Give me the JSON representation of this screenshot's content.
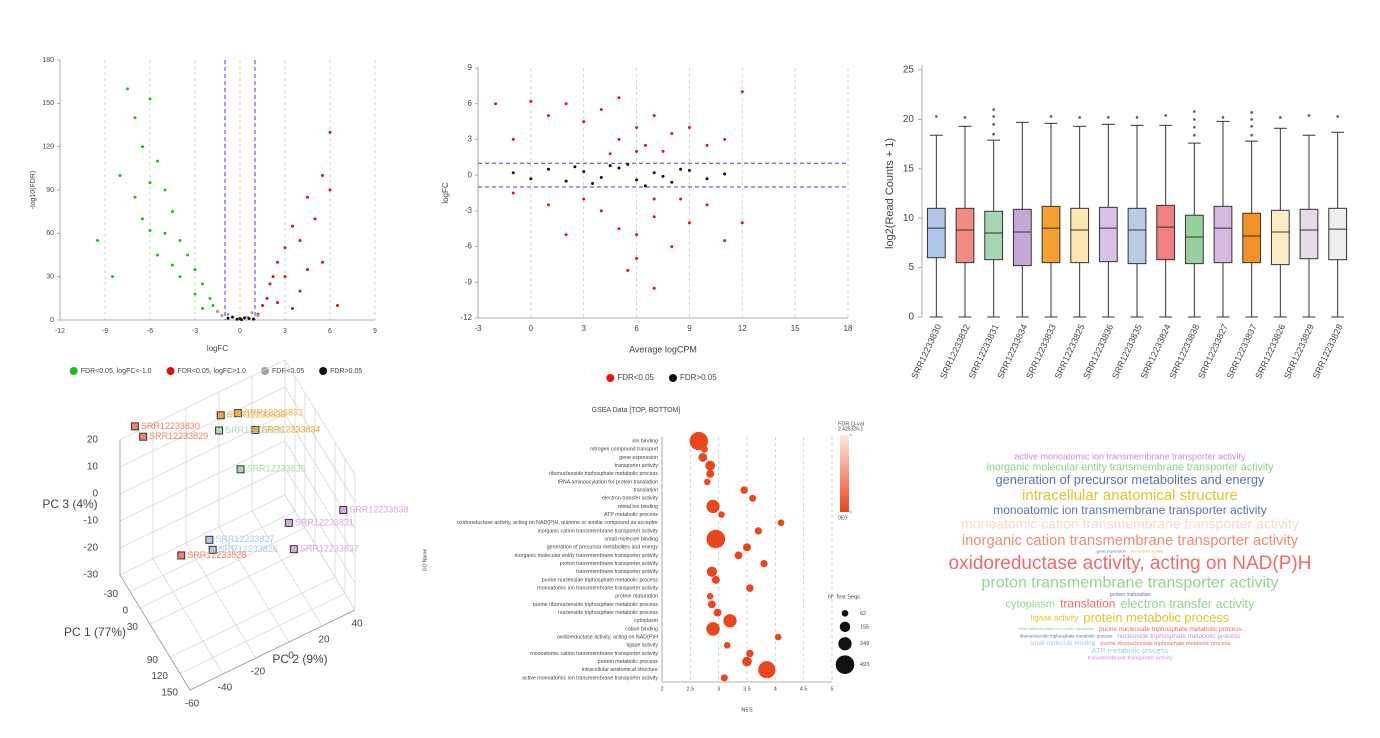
{
  "chart_data": [
    {
      "type": "scatter",
      "xlabel": "logFC",
      "ylabel": "-log10(FDR)",
      "xlim": [
        -12,
        9
      ],
      "xticks": [
        -12,
        -9,
        -6,
        -3,
        0,
        3,
        6,
        9
      ],
      "ylim": [
        0,
        180
      ],
      "yticks": [
        0,
        30,
        60,
        90,
        120,
        150,
        180
      ],
      "grid": "x",
      "legend": "bottom",
      "threshold_lines": {
        "orientation": "vertical",
        "values": [
          -1,
          1
        ],
        "color": "#3a3aff"
      },
      "series": [
        {
          "name": "FDR<0.05, logFC<-1.0",
          "color": "#22bb22",
          "x": [
            -7.5,
            -6,
            -7,
            -6.5,
            -8,
            -5.5,
            -6,
            -7,
            -5,
            -4.5,
            -6.5,
            -5,
            -4,
            -9.5,
            -3.5,
            -5.5,
            -3,
            -4,
            -2.5,
            -3,
            -2,
            -1.8,
            -1.5,
            -2.5,
            -4.5,
            -6,
            -8.5
          ],
          "y": [
            160,
            153,
            140,
            120,
            100,
            110,
            95,
            85,
            90,
            75,
            70,
            60,
            55,
            55,
            45,
            45,
            35,
            30,
            25,
            18,
            15,
            10,
            6,
            8,
            38,
            62,
            30
          ]
        },
        {
          "name": "FDR<0.05, logFC>1.0",
          "color": "#dd1111",
          "x": [
            6,
            5.5,
            6,
            4.5,
            5,
            3.5,
            4,
            3,
            5.5,
            2.5,
            3,
            2,
            4,
            1.8,
            1.5,
            2.5,
            6.5,
            3.5,
            1.2,
            4.5,
            2.2
          ],
          "y": [
            130,
            100,
            90,
            85,
            70,
            65,
            55,
            50,
            40,
            40,
            30,
            25,
            20,
            15,
            10,
            12,
            10,
            8,
            4,
            35,
            30
          ]
        },
        {
          "name": "FDR<0.05",
          "color": "#a0a0a0",
          "x": [
            -1.5,
            -0.8,
            0.8,
            1.2,
            -1.2,
            0.5
          ],
          "y": [
            6,
            4,
            5,
            3,
            3,
            2
          ]
        },
        {
          "name": "FDR>0.05",
          "color": "#111111",
          "x": [
            -0.5,
            0,
            0.3,
            -0.2,
            0.6,
            -0.8,
            0.9,
            0.1
          ],
          "y": [
            2,
            1,
            1.5,
            0.5,
            1,
            1.2,
            0.6,
            0.3
          ]
        }
      ]
    },
    {
      "type": "scatter",
      "xlabel": "Average logCPM",
      "ylabel": "logFC",
      "xlim": [
        -3,
        18
      ],
      "xticks": [
        -3,
        0,
        3,
        6,
        9,
        12,
        15,
        18
      ],
      "ylim": [
        -12,
        9
      ],
      "yticks": [
        -12,
        -9,
        -6,
        -3,
        0,
        3,
        6,
        9
      ],
      "grid": "x",
      "legend": "bottom",
      "threshold_lines": {
        "orientation": "horizontal",
        "values": [
          -1,
          1
        ],
        "color": "#3a3aff"
      },
      "series": [
        {
          "name": "FDR<0.05",
          "color": "#ee1111",
          "x": [
            0,
            1,
            2,
            3,
            4,
            5,
            6,
            7,
            8,
            9,
            10,
            11,
            12,
            -1,
            -2,
            5,
            6.5,
            7.5,
            4,
            5,
            6,
            7,
            8,
            9,
            10,
            11,
            3,
            2,
            1,
            6,
            7,
            5.5,
            8.5,
            6,
            4.5,
            7,
            12,
            -1
          ],
          "y": [
            6.2,
            5,
            6,
            4.5,
            5.5,
            6.5,
            4,
            5,
            3.5,
            4,
            2.5,
            3,
            7,
            3,
            6,
            3,
            2.5,
            2,
            -3,
            -4.5,
            -5,
            -3.5,
            -6,
            -4,
            -2.5,
            -5.5,
            -2,
            -5,
            -2.5,
            -7,
            -9.5,
            -8,
            -2,
            2,
            1.8,
            -2,
            -4,
            -1.5
          ]
        },
        {
          "name": "FDR>0.05",
          "color": "#111111",
          "x": [
            -1,
            0,
            1,
            2,
            3,
            4,
            5,
            6,
            7,
            8,
            9,
            10,
            11,
            5.5,
            6.5,
            3.5,
            4.5,
            7.5,
            2.5,
            8.5
          ],
          "y": [
            0.2,
            -0.3,
            0.5,
            -0.5,
            0.3,
            -0.2,
            0.6,
            -0.4,
            0.2,
            -0.6,
            0.4,
            -0.3,
            0.1,
            0.9,
            -0.9,
            -0.7,
            0.8,
            -0.1,
            0.7,
            0.5
          ]
        }
      ]
    },
    {
      "type": "box",
      "ylabel": "log2(Read Counts + 1)",
      "ylim": [
        0,
        25
      ],
      "yticks": [
        0,
        5,
        10,
        15,
        20,
        25
      ],
      "categories": [
        "SRR12233830",
        "SRR12233832",
        "SRR12233831",
        "SRR12233834",
        "SRR12233833",
        "SRR12233825",
        "SRR12233836",
        "SRR12233835",
        "SRR12233824",
        "SRR12233838",
        "SRR12233827",
        "SRR12233837",
        "SRR12233826",
        "SRR12233829",
        "SRR12233828"
      ],
      "colors": [
        "#aec7e8",
        "#f28b82",
        "#a8d5b2",
        "#c9a6d9",
        "#f5a033",
        "#fde8b5",
        "#d8c0e6",
        "#b8cde8",
        "#f07f7f",
        "#98d0a0",
        "#d7b8e0",
        "#f09228",
        "#fdebc6",
        "#e5dce8",
        "#eeeeee"
      ],
      "boxes": [
        {
          "min": 0,
          "q1": 6,
          "median": 9,
          "q3": 11,
          "max": 18.4,
          "outliers": [
            20.3
          ]
        },
        {
          "min": 0,
          "q1": 5.5,
          "median": 8.8,
          "q3": 11,
          "max": 19.3,
          "outliers": [
            20.2
          ]
        },
        {
          "min": 0,
          "q1": 5.8,
          "median": 8.5,
          "q3": 10.7,
          "max": 17.9,
          "outliers": [
            18.5,
            19.5,
            20.3,
            21
          ]
        },
        {
          "min": 0,
          "q1": 5.2,
          "median": 8.6,
          "q3": 10.9,
          "max": 19.7,
          "outliers": []
        },
        {
          "min": 0,
          "q1": 5.5,
          "median": 9,
          "q3": 11.2,
          "max": 19.6,
          "outliers": [
            20.3
          ]
        },
        {
          "min": 0,
          "q1": 5.5,
          "median": 8.8,
          "q3": 11,
          "max": 19.3,
          "outliers": [
            20.2
          ]
        },
        {
          "min": 0,
          "q1": 5.6,
          "median": 9,
          "q3": 11.1,
          "max": 19.5,
          "outliers": [
            20.2
          ]
        },
        {
          "min": 0,
          "q1": 5.4,
          "median": 8.8,
          "q3": 11,
          "max": 19.4,
          "outliers": [
            20.2
          ]
        },
        {
          "min": 0,
          "q1": 5.8,
          "median": 9.1,
          "q3": 11.3,
          "max": 19.4,
          "outliers": [
            20.4
          ]
        },
        {
          "min": 0,
          "q1": 5.4,
          "median": 8.1,
          "q3": 10.3,
          "max": 17.6,
          "outliers": [
            18.4,
            19.2,
            20,
            20.8
          ]
        },
        {
          "min": 0,
          "q1": 5.5,
          "median": 9,
          "q3": 11.2,
          "max": 19.8,
          "outliers": [
            20.2
          ]
        },
        {
          "min": 0,
          "q1": 5.5,
          "median": 8.2,
          "q3": 10.5,
          "max": 17.8,
          "outliers": [
            18.4,
            19.3,
            20,
            20.7
          ]
        },
        {
          "min": 0,
          "q1": 5.3,
          "median": 8.6,
          "q3": 10.8,
          "max": 19.1,
          "outliers": [
            20.2
          ]
        },
        {
          "min": 0,
          "q1": 5.9,
          "median": 8.8,
          "q3": 10.9,
          "max": 18.4,
          "outliers": [
            20.4
          ]
        },
        {
          "min": 0,
          "q1": 5.8,
          "median": 8.9,
          "q3": 11,
          "max": 18.7,
          "outliers": [
            20.3
          ]
        }
      ]
    },
    {
      "type": "scatter3d",
      "xlabel": "PC 1 (77%)",
      "ylabel": "PC 2 (9%)",
      "zlabel": "PC 3 (4%)",
      "xlim": [
        -60,
        150
      ],
      "xticks": [
        -30,
        0,
        30,
        90,
        120,
        150
      ],
      "ylim": [
        -60,
        40
      ],
      "yticks": [
        -60,
        -40,
        -20,
        0,
        20,
        40
      ],
      "zlim": [
        -30,
        20
      ],
      "zticks": [
        -30,
        -20,
        -10,
        0,
        10,
        20
      ],
      "points": [
        {
          "name": "SRR12233830",
          "color": "#f08070",
          "x": -50,
          "y": -53,
          "z": 25
        },
        {
          "name": "SRR12233829",
          "color": "#f08070",
          "x": -45,
          "y": -49,
          "z": 21
        },
        {
          "name": "SRR12233832",
          "color": "#f5b14a",
          "x": -40,
          "y": 7.5,
          "z": 14
        },
        {
          "name": "SRR12233833",
          "color": "#e8a84a",
          "x": -45,
          "y": -2,
          "z": 15
        },
        {
          "name": "SRR12233834",
          "color": "#f5a030",
          "x": -35,
          "y": 17,
          "z": 6
        },
        {
          "name": "SRR12233836",
          "color": "#a8d8b0",
          "x": -40,
          "y": -4,
          "z": 11
        },
        {
          "name": "SRR12233835",
          "color": "#a8d8b0",
          "x": -20,
          "y": 5,
          "z": -2
        },
        {
          "name": "SRR12233838",
          "color": "#d8a8e0",
          "x": 100,
          "y": 43,
          "z": -4
        },
        {
          "name": "SRR12233831",
          "color": "#d8a8e0",
          "x": 100,
          "y": 10,
          "z": 1
        },
        {
          "name": "SRR12233837",
          "color": "#d8a8e0",
          "x": 110,
          "y": 11,
          "z": -7
        },
        {
          "name": "SRR12233827",
          "color": "#aec8e8",
          "x": 20,
          "y": -22,
          "z": -12
        },
        {
          "name": "SRR12233826",
          "color": "#aec8e8",
          "x": 25,
          "y": -21,
          "z": -15
        },
        {
          "name": "SRR12233828",
          "color": "#f08070",
          "x": 0,
          "y": -35,
          "z": -18
        }
      ]
    },
    {
      "type": "dot",
      "title": "GSEA Data [TOP, BOTTOM]",
      "xlabel": "NES",
      "ylabel": "GO Name",
      "xlim": [
        2,
        5
      ],
      "xticks": [
        2,
        2.5,
        3,
        3.5,
        4,
        4.5,
        5
      ],
      "grid": "x",
      "colorbar": {
        "title": "FDR Q-val",
        "range": [
          0,
          0.2425326
        ],
        "colors": [
          "#e8461e",
          "#fde9e2"
        ],
        "ticks": [
          {
            "value": 0.2425326,
            "label": "2.425326-1"
          },
          {
            "value": 0,
            "label": "0E0"
          }
        ]
      },
      "size_legend": {
        "title": "N° Test Seqs",
        "values": [
          62,
          155,
          249,
          493
        ]
      },
      "categories": [
        "ion binding",
        "nitrogen compound transport",
        "gene expression",
        "transporter activity",
        "ribonucleoside triphosphate metabolic process",
        "tRNA aminoacylation for protein translation",
        "translation",
        "electron transfer activity",
        "metal ion binding",
        "ATP metabolic process",
        "oxidoreductase activity, acting on NAD(P)H, quinone or similar compound as acceptor",
        "inorganic cation transmembrane transporter activity",
        "small molecule binding",
        "generation of precursor metabolites and energy",
        "inorganic molecular entity transmembrane transporter activity",
        "proton transmembrane transporter activity",
        "transmembrane transporter activity",
        "purine nucleoside triphosphate metabolic process",
        "monoatomic ion transmembrane transporter activity",
        "protein maturation",
        "purine ribonucleoside triphosphate metabolic process",
        "nucleoside triphosphate metabolic process",
        "cytoplasm",
        "cation binding",
        "oxidoreductase activity, acting on NAD(P)H",
        "ligase activity",
        "monoatomic cation transmembrane transporter activity",
        "protein metabolic process",
        "intracellular anatomical structure",
        "active monoatomic ion transmembrane transporter activity"
      ],
      "nes": [
        2.65,
        2.75,
        2.72,
        2.85,
        2.85,
        2.8,
        3.45,
        3.6,
        2.9,
        3.05,
        4.1,
        3.7,
        2.95,
        3.5,
        3.35,
        3.8,
        2.88,
        2.95,
        3.55,
        2.85,
        2.88,
        2.98,
        3.2,
        2.9,
        4.05,
        3.15,
        3.55,
        3.5,
        3.85,
        3.1
      ],
      "sizes": [
        480,
        70,
        110,
        140,
        90,
        62,
        80,
        70,
        250,
        62,
        62,
        75,
        493,
        90,
        85,
        75,
        150,
        90,
        80,
        62,
        85,
        90,
        250,
        260,
        62,
        62,
        80,
        130,
        420,
        70
      ],
      "fdr": [
        0,
        0.01,
        0,
        0,
        0,
        0.01,
        0,
        0,
        0,
        0,
        0,
        0,
        0,
        0,
        0,
        0,
        0,
        0,
        0,
        0.01,
        0,
        0,
        0,
        0,
        0,
        0,
        0,
        0,
        0,
        0
      ]
    },
    {
      "type": "wordcloud",
      "rows": [
        [
          {
            "text": "active monoatomic ion transmembrane transporter activity",
            "size": 9,
            "color": "#c98fd8"
          }
        ],
        [
          {
            "text": "inorganic molecular entity transmembrane transporter activity",
            "size": 10.6,
            "color": "#8fcf8a"
          }
        ],
        [
          {
            "text": "generation of precursor metabolites and energy",
            "size": 12.8,
            "color": "#5a72b5"
          }
        ],
        [
          {
            "text": "intracellular anatomical structure",
            "size": 15,
            "color": "#e6c22a"
          }
        ],
        [
          {
            "text": "monoatomic ion transmembrane transporter activity",
            "size": 12,
            "color": "#5a72b5"
          }
        ],
        [
          {
            "text": "monoatomic cation transmembrane transporter activity",
            "size": 14,
            "color": "#f8dcc4"
          }
        ],
        [
          {
            "text": "inorganic cation transmembrane transporter activity",
            "size": 14.8,
            "color": "#f28a72"
          }
        ],
        [
          {
            "text": "gene expression",
            "size": 4,
            "color": "#5a72b5"
          },
          {
            "text": "transporter activity",
            "size": 4,
            "color": "#f5b14a"
          }
        ],
        [
          {
            "text": "oxidoreductase activity, acting on NAD(P)H",
            "size": 19,
            "color": "#f06a6a"
          }
        ],
        [
          {
            "text": "proton transmembrane transporter activity",
            "size": 16,
            "color": "#95d395"
          }
        ],
        [
          {
            "text": "protein maturation",
            "size": 5,
            "color": "#5a72b5"
          }
        ],
        [
          {
            "text": "cytoplasm",
            "size": 11,
            "color": "#95d395"
          },
          {
            "text": "translation",
            "size": 12,
            "color": "#f06a6a"
          },
          {
            "text": "electron transfer activity",
            "size": 12.7,
            "color": "#95d395"
          }
        ],
        [
          {
            "text": "ligase activity",
            "size": 8,
            "color": "#e6c22a"
          },
          {
            "text": "protein metabolic process",
            "size": 12.8,
            "color": "#e6c22a"
          }
        ],
        [
          {
            "text": "tRNA aminoacylation for protein translation",
            "size": 4,
            "color": "#8fcf8a"
          },
          {
            "text": "purine nucleoside triphosphate metabolic process",
            "size": 6.5,
            "color": "#f06a6a"
          }
        ],
        [
          {
            "text": "ribonucleoside triphosphate metabolic process",
            "size": 4.5,
            "color": "#5a72b5"
          },
          {
            "text": "nucleoside triphosphate metabolic process",
            "size": 6.5,
            "color": "#c98fd8"
          }
        ],
        [
          {
            "text": "small molecule binding",
            "size": 6.5,
            "color": "#a8c8f0"
          },
          {
            "text": "purine ribonucleoside triphosphate metabolic process",
            "size": 5.5,
            "color": "#f06a6a"
          }
        ],
        [
          {
            "text": "ATP metabolic process",
            "size": 7.5,
            "color": "#a8c8f0"
          }
        ],
        [
          {
            "text": "transmembrane transporter activity",
            "size": 5.5,
            "color": "#c98fd8"
          }
        ]
      ]
    }
  ]
}
